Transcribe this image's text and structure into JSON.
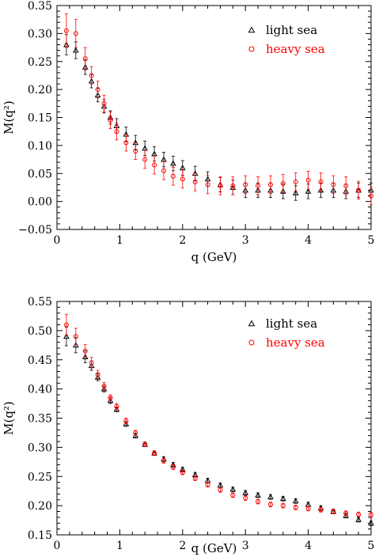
{
  "colors": {
    "light": "#000000",
    "heavy": "#ff0000"
  },
  "chart_data": [
    {
      "type": "scatter",
      "xlabel": "q (GeV)",
      "ylabel": "M(q²)",
      "xlim": [
        0,
        5
      ],
      "ylim": [
        -0.05,
        0.35
      ],
      "xticks": [
        0,
        1,
        2,
        3,
        4,
        5
      ],
      "xtick_labels": [
        "0",
        "1",
        "2",
        "3",
        "4",
        "5"
      ],
      "yticks": [
        -0.05,
        0.0,
        0.05,
        0.1,
        0.15,
        0.2,
        0.25,
        0.3,
        0.35
      ],
      "ytick_labels": [
        "−0.05",
        "0.00",
        "0.05",
        "0.10",
        "0.15",
        "0.20",
        "0.25",
        "0.30",
        "0.35"
      ],
      "legend_position": "top-right",
      "series": [
        {
          "name": "light sea",
          "marker": "triangle",
          "color": "#000000",
          "x": [
            0.15,
            0.3,
            0.45,
            0.55,
            0.65,
            0.75,
            0.85,
            0.95,
            1.1,
            1.25,
            1.4,
            1.55,
            1.7,
            1.85,
            2.0,
            2.2,
            2.4,
            2.6,
            2.8,
            3.0,
            3.2,
            3.4,
            3.6,
            3.8,
            4.0,
            4.2,
            4.4,
            4.6,
            4.8,
            5.0
          ],
          "y": [
            0.28,
            0.27,
            0.24,
            0.215,
            0.19,
            0.17,
            0.15,
            0.135,
            0.12,
            0.105,
            0.095,
            0.085,
            0.075,
            0.068,
            0.06,
            0.05,
            0.04,
            0.03,
            0.025,
            0.02,
            0.02,
            0.02,
            0.018,
            0.015,
            0.018,
            0.02,
            0.02,
            0.018,
            0.02,
            0.02
          ],
          "err": [
            0.018,
            0.015,
            0.013,
            0.012,
            0.012,
            0.012,
            0.012,
            0.013,
            0.013,
            0.013,
            0.013,
            0.013,
            0.013,
            0.013,
            0.013,
            0.013,
            0.013,
            0.013,
            0.013,
            0.013,
            0.013,
            0.013,
            0.013,
            0.013,
            0.013,
            0.013,
            0.013,
            0.013,
            0.013,
            0.013
          ]
        },
        {
          "name": "heavy sea",
          "marker": "circle",
          "color": "#ff0000",
          "x": [
            0.15,
            0.3,
            0.45,
            0.55,
            0.65,
            0.75,
            0.85,
            0.95,
            1.1,
            1.25,
            1.4,
            1.55,
            1.7,
            1.85,
            2.0,
            2.2,
            2.4,
            2.6,
            2.8,
            3.0,
            3.2,
            3.4,
            3.6,
            3.8,
            4.0,
            4.2,
            4.4,
            4.6,
            4.8,
            5.0
          ],
          "y": [
            0.305,
            0.3,
            0.255,
            0.225,
            0.2,
            0.175,
            0.145,
            0.125,
            0.105,
            0.09,
            0.075,
            0.065,
            0.055,
            0.045,
            0.04,
            0.035,
            0.03,
            0.028,
            0.028,
            0.03,
            0.028,
            0.03,
            0.032,
            0.035,
            0.038,
            0.035,
            0.03,
            0.028,
            0.02,
            0.01
          ],
          "err": [
            0.03,
            0.025,
            0.02,
            0.016,
            0.015,
            0.015,
            0.015,
            0.015,
            0.015,
            0.015,
            0.016,
            0.016,
            0.016,
            0.016,
            0.016,
            0.016,
            0.016,
            0.016,
            0.016,
            0.016,
            0.016,
            0.016,
            0.016,
            0.016,
            0.016,
            0.016,
            0.016,
            0.016,
            0.016,
            0.016
          ]
        }
      ]
    },
    {
      "type": "scatter",
      "xlabel": "q (GeV)",
      "ylabel": "M(q²)",
      "xlim": [
        0,
        5
      ],
      "ylim": [
        0.15,
        0.55
      ],
      "xticks": [
        0,
        1,
        2,
        3,
        4,
        5
      ],
      "xtick_labels": [
        "0",
        "1",
        "2",
        "3",
        "4",
        "5"
      ],
      "yticks": [
        0.15,
        0.2,
        0.25,
        0.3,
        0.35,
        0.4,
        0.45,
        0.5,
        0.55
      ],
      "ytick_labels": [
        "0.15",
        "0.20",
        "0.25",
        "0.30",
        "0.35",
        "0.40",
        "0.45",
        "0.50",
        "0.55"
      ],
      "legend_position": "top-right",
      "series": [
        {
          "name": "light sea",
          "marker": "triangle",
          "color": "#000000",
          "x": [
            0.15,
            0.3,
            0.45,
            0.55,
            0.65,
            0.75,
            0.85,
            0.95,
            1.1,
            1.25,
            1.4,
            1.55,
            1.7,
            1.85,
            2.0,
            2.2,
            2.4,
            2.6,
            2.8,
            3.0,
            3.2,
            3.4,
            3.6,
            3.8,
            4.0,
            4.2,
            4.4,
            4.6,
            4.8,
            5.0
          ],
          "y": [
            0.49,
            0.475,
            0.455,
            0.44,
            0.42,
            0.4,
            0.38,
            0.365,
            0.34,
            0.32,
            0.305,
            0.29,
            0.28,
            0.27,
            0.262,
            0.253,
            0.243,
            0.235,
            0.228,
            0.222,
            0.218,
            0.215,
            0.212,
            0.208,
            0.202,
            0.196,
            0.19,
            0.183,
            0.176,
            0.17
          ],
          "err": [
            0.016,
            0.013,
            0.01,
            0.008,
            0.006,
            0.005,
            0.005,
            0.004,
            0.004,
            0.004,
            0.004,
            0.004,
            0.004,
            0.004,
            0.004,
            0.004,
            0.004,
            0.004,
            0.004,
            0.004,
            0.004,
            0.004,
            0.004,
            0.004,
            0.004,
            0.004,
            0.004,
            0.004,
            0.004,
            0.004
          ]
        },
        {
          "name": "heavy sea",
          "marker": "circle",
          "color": "#ff0000",
          "x": [
            0.15,
            0.3,
            0.45,
            0.55,
            0.65,
            0.75,
            0.85,
            0.95,
            1.1,
            1.25,
            1.4,
            1.55,
            1.7,
            1.85,
            2.0,
            2.2,
            2.4,
            2.6,
            2.8,
            3.0,
            3.2,
            3.4,
            3.6,
            3.8,
            4.0,
            4.2,
            4.4,
            4.6,
            4.8,
            5.0
          ],
          "y": [
            0.51,
            0.49,
            0.465,
            0.445,
            0.425,
            0.405,
            0.385,
            0.37,
            0.345,
            0.325,
            0.305,
            0.29,
            0.277,
            0.266,
            0.257,
            0.247,
            0.236,
            0.227,
            0.218,
            0.213,
            0.207,
            0.202,
            0.2,
            0.197,
            0.195,
            0.193,
            0.19,
            0.187,
            0.185,
            0.184
          ],
          "err": [
            0.018,
            0.014,
            0.011,
            0.009,
            0.007,
            0.006,
            0.005,
            0.005,
            0.005,
            0.004,
            0.004,
            0.004,
            0.004,
            0.004,
            0.004,
            0.004,
            0.004,
            0.004,
            0.004,
            0.004,
            0.004,
            0.004,
            0.004,
            0.004,
            0.004,
            0.004,
            0.004,
            0.004,
            0.004,
            0.004
          ]
        }
      ]
    }
  ]
}
